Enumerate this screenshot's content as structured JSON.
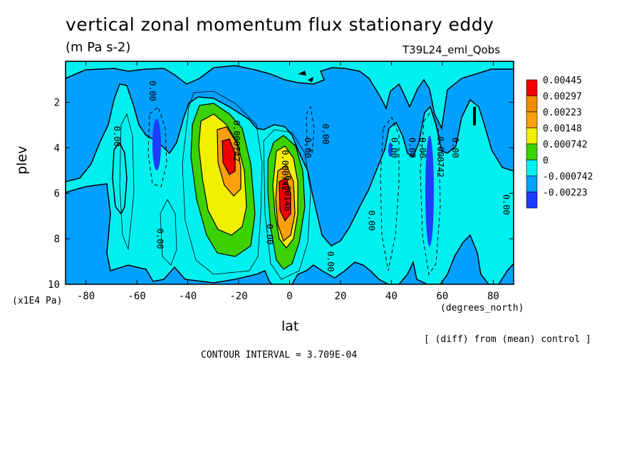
{
  "title": "vertical zonal momentum flux stationary eddy",
  "units": "(m Pa s-2)",
  "run_name": "T39L24_eml_Qobs",
  "x_axis_label": "lat",
  "x_axis_units": "(degrees_north)",
  "y_axis_label": "plev",
  "y_axis_units": "(x1E4 Pa)",
  "comparison_note": "[ (diff) from (mean) control ]",
  "contour_interval": "CONTOUR INTERVAL = 3.709E-04",
  "chart_data": {
    "type": "heatmap",
    "title": "vertical zonal momentum flux stationary eddy",
    "xlabel": "lat",
    "ylabel": "plev",
    "x_ticks": [
      -80,
      -60,
      -40,
      -20,
      0,
      20,
      40,
      60,
      80
    ],
    "x_tick_labels": [
      "-80",
      "-60",
      "-40",
      "-20",
      "0",
      "20",
      "40",
      "60",
      "80"
    ],
    "y_ticks": [
      2,
      4,
      6,
      8,
      10
    ],
    "y_tick_labels": [
      "2",
      "4",
      "6",
      "8",
      "10"
    ],
    "xlim": [
      -88,
      88
    ],
    "ylim": [
      10,
      0.2
    ],
    "contour_labels": [
      {
        "text": "0.00",
        "lat": -69,
        "plev": 3.5
      },
      {
        "text": "0.00",
        "lat": -55,
        "plev": 1.5
      },
      {
        "text": "0.00",
        "lat": -52,
        "plev": 8.0
      },
      {
        "text": "0.000742",
        "lat": -22,
        "plev": 3.7
      },
      {
        "text": "0.000742",
        "lat": -3,
        "plev": 5.0
      },
      {
        "text": "0.00148",
        "lat": -2,
        "plev": 6.0
      },
      {
        "text": "0.00",
        "lat": -9,
        "plev": 7.8
      },
      {
        "text": "0.00",
        "lat": 6,
        "plev": 4.0
      },
      {
        "text": "0.00",
        "lat": 13,
        "plev": 3.4
      },
      {
        "text": "0.00",
        "lat": 15,
        "plev": 9.0
      },
      {
        "text": "0.00",
        "lat": 31,
        "plev": 7.2
      },
      {
        "text": "0.00",
        "lat": 40,
        "plev": 4.0
      },
      {
        "text": "0.00",
        "lat": 47,
        "plev": 4.0
      },
      {
        "text": "0.00",
        "lat": 51,
        "plev": 4.0
      },
      {
        "text": "0.000742",
        "lat": 58,
        "plev": 4.4
      },
      {
        "text": "0.00",
        "lat": 64,
        "plev": 4.0
      },
      {
        "text": "0.00",
        "lat": 84,
        "plev": 6.5
      }
    ],
    "legend": {
      "position": "right",
      "levels": [
        {
          "label": "0.00445",
          "color": "#f00000"
        },
        {
          "label": "0.00297",
          "color": "#f08c00"
        },
        {
          "label": "0.00223",
          "color": "#faa00a"
        },
        {
          "label": "0.00148",
          "color": "#f0f000"
        },
        {
          "label": "0.000742",
          "color": "#3cd200"
        },
        {
          "label": "0",
          "color": "#00f0f0"
        },
        {
          "label": "-0.000742",
          "color": "#00a0ff"
        },
        {
          "label": "-0.00223",
          "color": "#1e3cff"
        }
      ]
    }
  }
}
